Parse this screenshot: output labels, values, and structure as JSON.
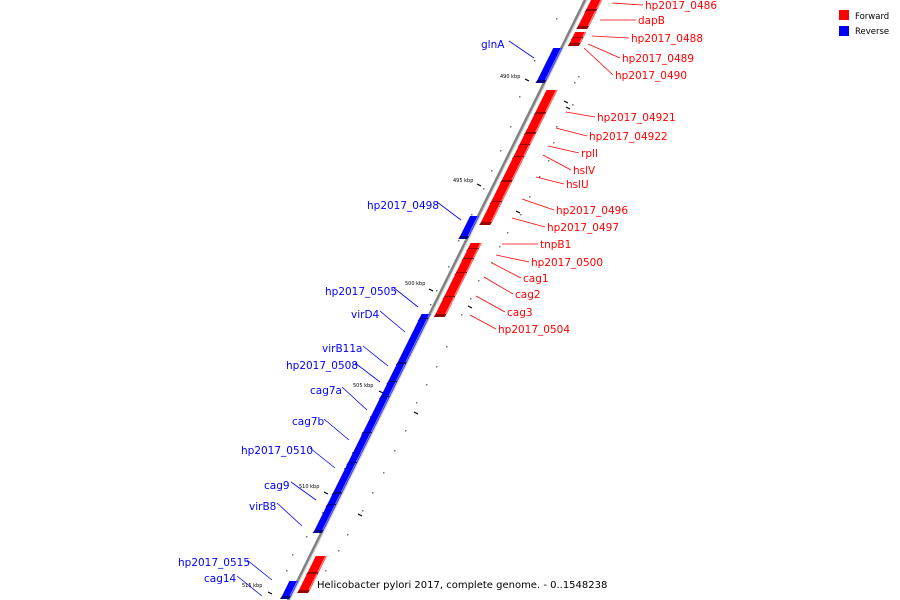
{
  "legend": [
    {
      "label": "Forward",
      "color": "#ff0000"
    },
    {
      "label": "Reverse",
      "color": "#0000ff"
    }
  ],
  "caption": "Helicobacter pylori 2017, complete genome. - 0..1548238",
  "colors": {
    "forward": "#ff0000",
    "reverse": "#0000ff",
    "backbone": "#888888"
  },
  "ticks": [
    {
      "label": "490 kbp",
      "value_kbp": 490
    },
    {
      "label": "495 kbp",
      "value_kbp": 495
    },
    {
      "label": "500 kbp",
      "value_kbp": 500
    },
    {
      "label": "505 kbp",
      "value_kbp": 505
    },
    {
      "label": "510 kbp",
      "value_kbp": 510
    },
    {
      "label": "515 kbp",
      "value_kbp": 515
    }
  ],
  "genes_forward": [
    {
      "name": "hp2017_0486"
    },
    {
      "name": "dapB"
    },
    {
      "name": "hp2017_0488"
    },
    {
      "name": "hp2017_0489"
    },
    {
      "name": "hp2017_0490"
    },
    {
      "name": "hp2017_04921"
    },
    {
      "name": "hp2017_04922"
    },
    {
      "name": "rplI"
    },
    {
      "name": "hslV"
    },
    {
      "name": "hslU"
    },
    {
      "name": "hp2017_0496"
    },
    {
      "name": "hp2017_0497"
    },
    {
      "name": "tnpB1"
    },
    {
      "name": "hp2017_0500"
    },
    {
      "name": "cag1"
    },
    {
      "name": "cag2"
    },
    {
      "name": "cag3"
    },
    {
      "name": "hp2017_0504"
    }
  ],
  "genes_reverse": [
    {
      "name": "glnA"
    },
    {
      "name": "hp2017_0498"
    },
    {
      "name": "hp2017_0505"
    },
    {
      "name": "virD4"
    },
    {
      "name": "virB11a"
    },
    {
      "name": "hp2017_0508"
    },
    {
      "name": "cag7a"
    },
    {
      "name": "cag7b"
    },
    {
      "name": "hp2017_0510"
    },
    {
      "name": "cag9"
    },
    {
      "name": "virB8"
    },
    {
      "name": "hp2017_0515"
    },
    {
      "name": "cag14"
    }
  ]
}
